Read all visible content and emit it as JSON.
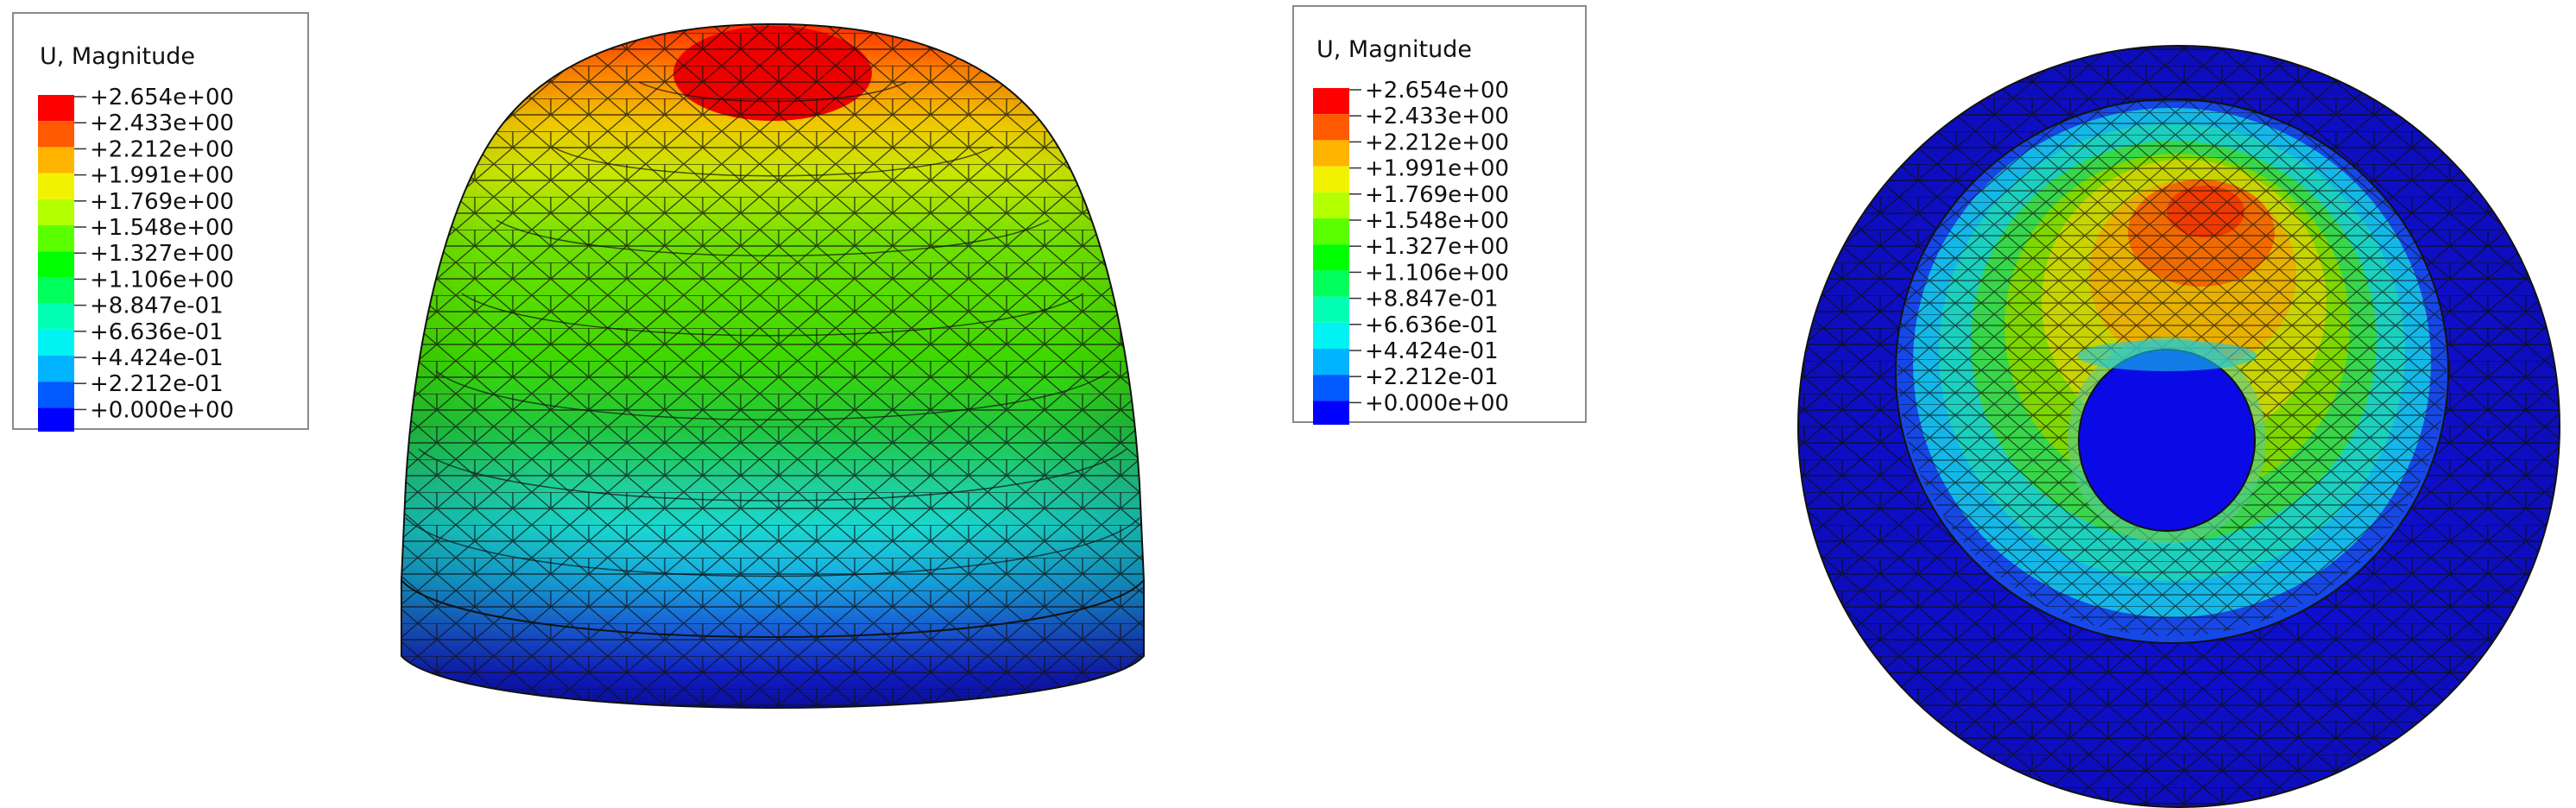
{
  "figure": {
    "legends": [
      {
        "title": "U, Magnitude",
        "labels": [
          "+2.654e+00",
          "+2.433e+00",
          "+2.212e+00",
          "+1.991e+00",
          "+1.769e+00",
          "+1.548e+00",
          "+1.327e+00",
          "+1.106e+00",
          "+8.847e-01",
          "+6.636e-01",
          "+4.424e-01",
          "+2.212e-01",
          "+0.000e+00"
        ]
      },
      {
        "title": "U, Magnitude",
        "labels": [
          "+2.654e+00",
          "+2.433e+00",
          "+2.212e+00",
          "+1.991e+00",
          "+1.769e+00",
          "+1.548e+00",
          "+1.327e+00",
          "+1.106e+00",
          "+8.847e-01",
          "+6.636e-01",
          "+4.424e-01",
          "+2.212e-01",
          "+0.000e+00"
        ]
      }
    ],
    "color_bands": [
      "#ff0000",
      "#ff5a00",
      "#ffb400",
      "#f2f200",
      "#b4ff00",
      "#5aff00",
      "#00ff00",
      "#00ff5a",
      "#00ffb4",
      "#00f2f2",
      "#00b4ff",
      "#005aff",
      "#0000ff"
    ],
    "views": [
      {
        "name": "dome-side-view"
      },
      {
        "name": "dome-top-view"
      }
    ]
  }
}
